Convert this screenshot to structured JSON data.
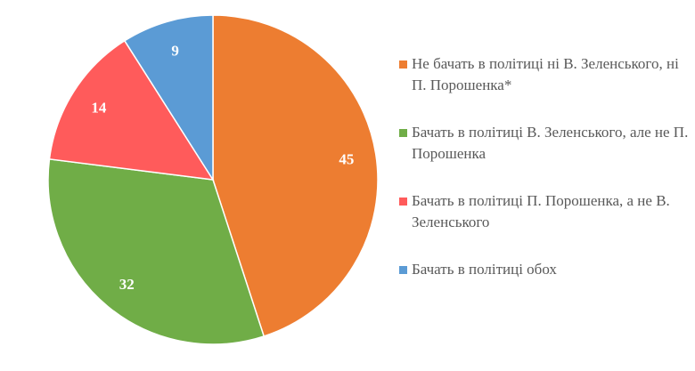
{
  "chart_data": {
    "type": "pie",
    "title": "",
    "legend_position": "right",
    "slices": [
      {
        "label": "Не бачать в політиці ні В. Зеленського, ні П. Порошенка*",
        "value": 45,
        "color": "#ED7D31"
      },
      {
        "label": "Бачать в політиці В. Зеленського, але не П. Порошенка",
        "value": 32,
        "color": "#70AD47"
      },
      {
        "label": "Бачать в політиці П. Порошенка, а не В. Зеленського",
        "value": 14,
        "color": "#FF5B5B"
      },
      {
        "label": "Бачать в політиці обох",
        "value": 9,
        "color": "#5B9BD5"
      }
    ]
  }
}
